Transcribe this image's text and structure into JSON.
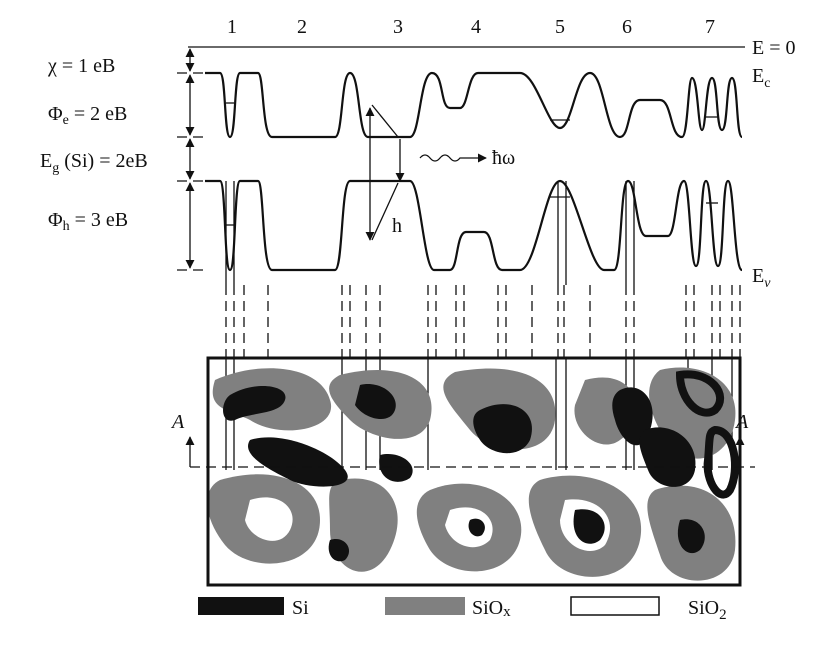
{
  "regions": [
    "1",
    "2",
    "3",
    "4",
    "5",
    "6",
    "7"
  ],
  "levels": {
    "vacuum": "E = 0",
    "conduction": "E",
    "conduction_sub": "c",
    "valence": "E",
    "valence_sub": "v"
  },
  "left_labels": {
    "chi": "χ = 1 eB",
    "phi_e": {
      "symbol": "Φ",
      "sub": "e",
      "rest": " = 2 eB"
    },
    "eg": {
      "symbol": "E",
      "sub": "g",
      "rest": " (Si) = 2eB"
    },
    "phi_h": {
      "symbol": "Φ",
      "sub": "h",
      "rest": " = 3 eB"
    }
  },
  "annotations": {
    "photon": "ħω",
    "hole": "h",
    "section_left": "A",
    "section_right": "A"
  },
  "legend": [
    {
      "label": "Si"
    },
    {
      "label": "SiO",
      "sub": "x"
    },
    {
      "label": "SiO",
      "sub": "2"
    }
  ]
}
